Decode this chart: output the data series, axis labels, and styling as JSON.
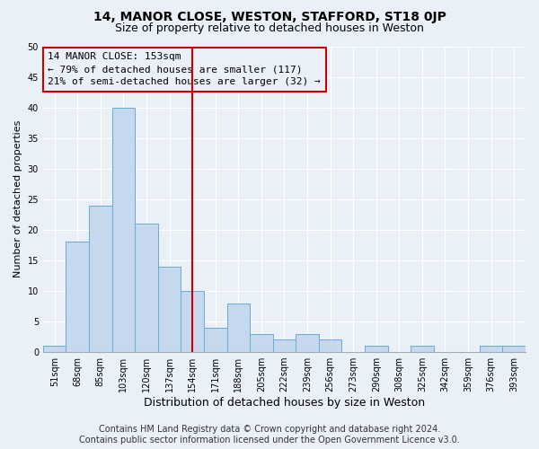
{
  "title": "14, MANOR CLOSE, WESTON, STAFFORD, ST18 0JP",
  "subtitle": "Size of property relative to detached houses in Weston",
  "xlabel": "Distribution of detached houses by size in Weston",
  "ylabel": "Number of detached properties",
  "categories": [
    "51sqm",
    "68sqm",
    "85sqm",
    "103sqm",
    "120sqm",
    "137sqm",
    "154sqm",
    "171sqm",
    "188sqm",
    "205sqm",
    "222sqm",
    "239sqm",
    "256sqm",
    "273sqm",
    "290sqm",
    "308sqm",
    "325sqm",
    "342sqm",
    "359sqm",
    "376sqm",
    "393sqm"
  ],
  "values": [
    1,
    18,
    24,
    40,
    21,
    14,
    10,
    4,
    8,
    3,
    2,
    3,
    2,
    0,
    1,
    0,
    1,
    0,
    0,
    1,
    1
  ],
  "bar_color": "#c5d8ee",
  "bar_edge_color": "#6aaad4",
  "bar_edge_width": 0.7,
  "marker_index": 6,
  "marker_color": "#cc0000",
  "ylim": [
    0,
    50
  ],
  "yticks": [
    0,
    5,
    10,
    15,
    20,
    25,
    30,
    35,
    40,
    45,
    50
  ],
  "annotation_box_text": [
    "14 MANOR CLOSE: 153sqm",
    "← 79% of detached houses are smaller (117)",
    "21% of semi-detached houses are larger (32) →"
  ],
  "annotation_box_color": "#cc0000",
  "footer_line1": "Contains HM Land Registry data © Crown copyright and database right 2024.",
  "footer_line2": "Contains public sector information licensed under the Open Government Licence v3.0.",
  "background_color": "#eaf0f8",
  "grid_color": "#ffffff",
  "title_fontsize": 10,
  "subtitle_fontsize": 9,
  "xlabel_fontsize": 9,
  "ylabel_fontsize": 8,
  "tick_fontsize": 7,
  "annotation_fontsize": 8,
  "footer_fontsize": 7
}
